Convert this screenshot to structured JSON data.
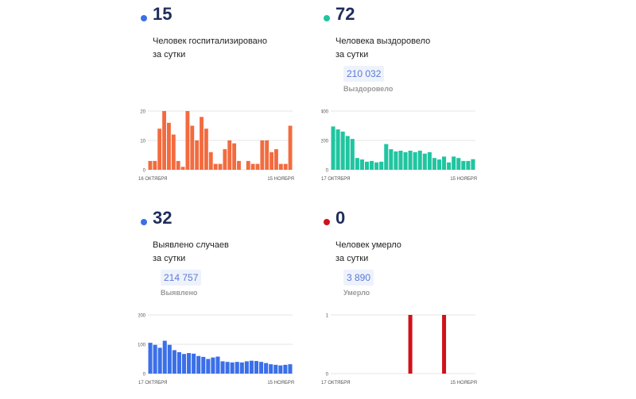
{
  "panels": {
    "hospitalized": {
      "number": "15",
      "caption1": "Человек госпитализировано",
      "caption2": "за сутки",
      "dot_color": "#3b6fe8",
      "bar_color": "#f26b3f"
    },
    "recovered": {
      "number": "72",
      "caption1": "Человека выздоровело",
      "caption2": "за сутки",
      "total": "210 032",
      "total_label": "Выздоровело",
      "dot_color": "#20c5a0",
      "bar_color": "#20c5a0"
    },
    "cases": {
      "number": "32",
      "caption1": "Выявлено случаев",
      "caption2": "за сутки",
      "total": "214 757",
      "total_label": "Выявлено",
      "dot_color": "#3b6fe8",
      "bar_color": "#3b6fe8"
    },
    "deaths": {
      "number": "0",
      "caption1": "Человек умерло",
      "caption2": "за сутки",
      "total": "3 890",
      "total_label": "Умерло",
      "dot_color": "#d0111b",
      "bar_color": "#d0111b"
    }
  },
  "chart_data": [
    {
      "type": "bar",
      "ylim": [
        0,
        20
      ],
      "yticks": [
        "0",
        "10",
        "20"
      ],
      "x_start_label": "16 ОКТЯБРЯ",
      "x_end_label": "15 НОЯБРЯ",
      "values": [
        3,
        3,
        14,
        20,
        16,
        12,
        3,
        1,
        20,
        15,
        10,
        18,
        14,
        6,
        2,
        2,
        7,
        10,
        9,
        3,
        0,
        3,
        2,
        2,
        10,
        10,
        6,
        7,
        2,
        2,
        15
      ]
    },
    {
      "type": "bar",
      "ylim": [
        0,
        400
      ],
      "yticks": [
        "0",
        "200",
        "400"
      ],
      "x_start_label": "17 ОКТЯБРЯ",
      "x_end_label": "15 НОЯБРЯ",
      "values": [
        295,
        275,
        260,
        230,
        210,
        80,
        70,
        55,
        60,
        50,
        55,
        175,
        140,
        125,
        130,
        120,
        130,
        120,
        130,
        110,
        120,
        80,
        70,
        90,
        50,
        90,
        80,
        60,
        60,
        72
      ]
    },
    {
      "type": "bar",
      "ylim": [
        0,
        200
      ],
      "yticks": [
        "0",
        "100",
        "200"
      ],
      "x_start_label": "17 ОКТЯБРЯ",
      "x_end_label": "15 НОЯБРЯ",
      "values": [
        105,
        98,
        88,
        112,
        98,
        80,
        73,
        67,
        70,
        68,
        60,
        57,
        50,
        55,
        58,
        42,
        40,
        38,
        40,
        38,
        42,
        44,
        43,
        40,
        36,
        32,
        30,
        28,
        30,
        32
      ]
    },
    {
      "type": "bar",
      "ylim": [
        0,
        1
      ],
      "yticks": [
        "0",
        "1"
      ],
      "x_start_label": "17 ОКТЯБРЯ",
      "x_end_label": "15 НОЯБРЯ",
      "values": [
        0,
        0,
        0,
        0,
        0,
        0,
        0,
        0,
        0,
        0,
        0,
        0,
        0,
        0,
        0,
        0,
        1,
        0,
        0,
        0,
        0,
        0,
        0,
        1,
        0,
        0,
        0,
        0,
        0,
        0
      ]
    }
  ]
}
